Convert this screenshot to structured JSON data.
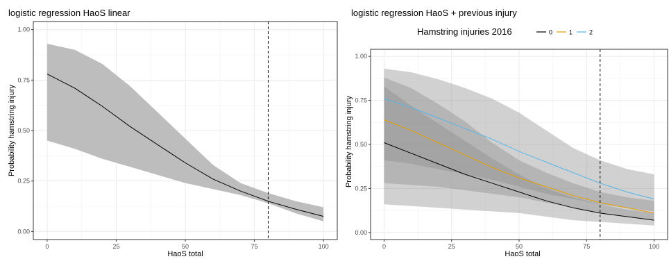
{
  "chart_data": [
    {
      "type": "line",
      "title": "logistic regression HaoS linear",
      "xlabel": "HaoS total",
      "ylabel": "Probability hamstring injury",
      "xlim": [
        -5,
        105
      ],
      "ylim": [
        -0.04,
        1.04
      ],
      "xticks": [
        0,
        25,
        50,
        75,
        100
      ],
      "yticks": [
        0,
        0.25,
        0.5,
        0.75,
        1.0
      ],
      "xtick_labels": [
        "0",
        "25",
        "50",
        "75",
        "100"
      ],
      "ytick_labels": [
        "0.00",
        "0.25",
        "0.50",
        "0.75",
        "1.00"
      ],
      "grid": true,
      "vline": {
        "x": 80,
        "style": "dashed"
      },
      "x": [
        0,
        10,
        20,
        30,
        40,
        50,
        60,
        70,
        80,
        90,
        100
      ],
      "series": [
        {
          "color": "#000000",
          "values": [
            0.78,
            0.71,
            0.62,
            0.52,
            0.43,
            0.34,
            0.26,
            0.2,
            0.15,
            0.11,
            0.075
          ],
          "ci_lower": [
            0.45,
            0.41,
            0.36,
            0.32,
            0.28,
            0.24,
            0.21,
            0.18,
            0.14,
            0.09,
            0.05
          ],
          "ci_upper": [
            0.93,
            0.9,
            0.83,
            0.72,
            0.59,
            0.46,
            0.33,
            0.24,
            0.19,
            0.15,
            0.12
          ],
          "band_color": "#bdbdbd"
        }
      ]
    },
    {
      "type": "line",
      "title": "logistic regression HaoS + previous injury",
      "legend": {
        "title": "Hamstring injuries 2016",
        "position": "top"
      },
      "xlabel": "HaoS total",
      "ylabel": "Probability hamstring injury",
      "xlim": [
        -5,
        105
      ],
      "ylim": [
        -0.04,
        1.04
      ],
      "xticks": [
        0,
        25,
        50,
        75,
        100
      ],
      "yticks": [
        0,
        0.25,
        0.5,
        0.75,
        1.0
      ],
      "xtick_labels": [
        "0",
        "25",
        "50",
        "75",
        "100"
      ],
      "ytick_labels": [
        "0.00",
        "0.25",
        "0.50",
        "0.75",
        "1.00"
      ],
      "grid": true,
      "vline": {
        "x": 80,
        "style": "dashed"
      },
      "x": [
        0,
        10,
        20,
        30,
        40,
        50,
        60,
        70,
        80,
        90,
        100
      ],
      "series": [
        {
          "name": "0",
          "color": "#000000",
          "values": [
            0.51,
            0.45,
            0.39,
            0.33,
            0.28,
            0.23,
            0.18,
            0.14,
            0.11,
            0.09,
            0.07
          ],
          "ci_lower": [
            0.16,
            0.15,
            0.14,
            0.13,
            0.12,
            0.11,
            0.09,
            0.07,
            0.06,
            0.05,
            0.04
          ],
          "ci_upper": [
            0.83,
            0.72,
            0.62,
            0.52,
            0.42,
            0.33,
            0.25,
            0.2,
            0.16,
            0.13,
            0.11
          ]
        },
        {
          "name": "1",
          "color": "#E69F00",
          "values": [
            0.64,
            0.58,
            0.51,
            0.44,
            0.37,
            0.31,
            0.26,
            0.21,
            0.17,
            0.14,
            0.11
          ],
          "ci_lower": [
            0.28,
            0.27,
            0.26,
            0.24,
            0.22,
            0.2,
            0.17,
            0.14,
            0.11,
            0.09,
            0.07
          ],
          "ci_upper": [
            0.88,
            0.82,
            0.73,
            0.63,
            0.51,
            0.41,
            0.34,
            0.28,
            0.23,
            0.2,
            0.18
          ]
        },
        {
          "name": "2",
          "color": "#56B4E9",
          "values": [
            0.76,
            0.71,
            0.65,
            0.59,
            0.53,
            0.46,
            0.4,
            0.34,
            0.28,
            0.23,
            0.19
          ],
          "ci_lower": [
            0.41,
            0.39,
            0.36,
            0.33,
            0.3,
            0.26,
            0.22,
            0.19,
            0.16,
            0.14,
            0.12
          ],
          "ci_upper": [
            0.93,
            0.91,
            0.87,
            0.82,
            0.76,
            0.68,
            0.58,
            0.48,
            0.41,
            0.36,
            0.33
          ]
        }
      ]
    }
  ]
}
